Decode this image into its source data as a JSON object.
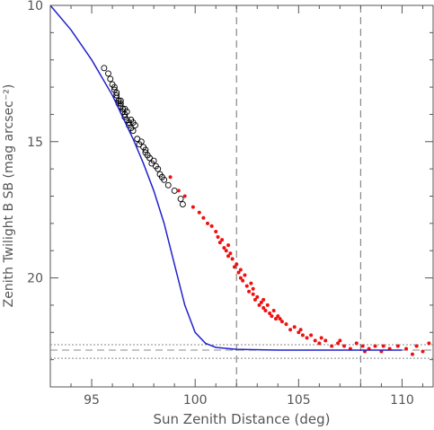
{
  "chart_data": {
    "type": "scatter",
    "title": "",
    "xlabel": "Sun Zenith Distance (deg)",
    "ylabel": "Zenith Twilight B SB (mag arcsec⁻²)",
    "xlim": [
      93,
      111.5
    ],
    "ylim": [
      10,
      24
    ],
    "y_inverted": true,
    "grid": false,
    "x_ticks": [
      95,
      100,
      105,
      110
    ],
    "y_ticks": [
      10,
      15,
      20
    ],
    "vertical_lines": [
      102,
      108
    ],
    "horizontal_lines": [
      {
        "y": 22.45,
        "style": "dotted"
      },
      {
        "y": 22.65,
        "style": "dashed"
      },
      {
        "y": 22.95,
        "style": "dotted"
      }
    ],
    "colors": {
      "model_curve": "#2222cc",
      "open_points": "#000000",
      "filled_points": "#ee1111",
      "reference_lines": "#888888"
    },
    "series": [
      {
        "marker": "open-circle",
        "points": [
          [
            95.6,
            12.3
          ],
          [
            95.8,
            12.5
          ],
          [
            95.9,
            12.7
          ],
          [
            96.0,
            12.9
          ],
          [
            96.1,
            13.0
          ],
          [
            96.1,
            13.1
          ],
          [
            96.2,
            13.3
          ],
          [
            96.2,
            13.4
          ],
          [
            96.3,
            13.5
          ],
          [
            96.3,
            13.6
          ],
          [
            96.4,
            13.5
          ],
          [
            96.4,
            13.7
          ],
          [
            96.5,
            13.8
          ],
          [
            96.5,
            13.9
          ],
          [
            96.6,
            14.0
          ],
          [
            96.6,
            14.1
          ],
          [
            96.7,
            13.9
          ],
          [
            96.7,
            14.2
          ],
          [
            96.8,
            14.3
          ],
          [
            96.8,
            14.4
          ],
          [
            96.9,
            14.2
          ],
          [
            96.9,
            14.5
          ],
          [
            97.0,
            14.6
          ],
          [
            97.1,
            14.4
          ],
          [
            97.2,
            14.9
          ],
          [
            97.3,
            15.1
          ],
          [
            97.4,
            15.0
          ],
          [
            97.5,
            15.2
          ],
          [
            97.6,
            15.4
          ],
          [
            97.7,
            15.5
          ],
          [
            97.8,
            15.6
          ],
          [
            97.9,
            15.8
          ],
          [
            98.0,
            15.7
          ],
          [
            98.1,
            15.9
          ],
          [
            98.2,
            16.0
          ],
          [
            98.3,
            16.2
          ],
          [
            98.5,
            16.4
          ],
          [
            98.7,
            16.6
          ],
          [
            99.0,
            16.8
          ],
          [
            99.3,
            17.1
          ],
          [
            99.4,
            17.3
          ],
          [
            96.2,
            13.2
          ],
          [
            96.4,
            13.6
          ],
          [
            96.6,
            13.8
          ],
          [
            97.0,
            14.3
          ],
          [
            97.6,
            15.3
          ],
          [
            98.4,
            16.3
          ]
        ]
      },
      {
        "marker": "filled-dot",
        "points": [
          [
            98.8,
            16.3
          ],
          [
            99.2,
            16.8
          ],
          [
            99.5,
            17.0
          ],
          [
            99.9,
            17.4
          ],
          [
            100.2,
            17.6
          ],
          [
            100.4,
            17.8
          ],
          [
            100.6,
            18.0
          ],
          [
            100.8,
            18.1
          ],
          [
            101.0,
            18.3
          ],
          [
            101.1,
            18.5
          ],
          [
            101.2,
            18.7
          ],
          [
            101.3,
            18.6
          ],
          [
            101.4,
            18.9
          ],
          [
            101.5,
            19.0
          ],
          [
            101.6,
            19.2
          ],
          [
            101.7,
            19.1
          ],
          [
            101.8,
            19.3
          ],
          [
            101.9,
            19.6
          ],
          [
            102.0,
            19.5
          ],
          [
            102.1,
            19.8
          ],
          [
            102.2,
            20.0
          ],
          [
            102.3,
            20.1
          ],
          [
            102.4,
            19.9
          ],
          [
            102.5,
            20.3
          ],
          [
            102.6,
            20.5
          ],
          [
            102.7,
            20.2
          ],
          [
            102.8,
            20.6
          ],
          [
            102.9,
            20.8
          ],
          [
            103.0,
            20.7
          ],
          [
            103.1,
            21.0
          ],
          [
            103.2,
            20.9
          ],
          [
            103.3,
            21.1
          ],
          [
            103.4,
            21.2
          ],
          [
            103.5,
            21.0
          ],
          [
            103.6,
            21.3
          ],
          [
            103.7,
            21.4
          ],
          [
            103.8,
            21.2
          ],
          [
            103.9,
            21.5
          ],
          [
            104.0,
            21.4
          ],
          [
            104.2,
            21.6
          ],
          [
            104.4,
            21.7
          ],
          [
            104.6,
            21.9
          ],
          [
            104.8,
            21.8
          ],
          [
            105.0,
            22.0
          ],
          [
            105.2,
            22.1
          ],
          [
            105.4,
            22.2
          ],
          [
            105.6,
            22.1
          ],
          [
            105.8,
            22.3
          ],
          [
            106.0,
            22.4
          ],
          [
            106.3,
            22.3
          ],
          [
            106.6,
            22.5
          ],
          [
            106.9,
            22.4
          ],
          [
            107.2,
            22.5
          ],
          [
            107.5,
            22.6
          ],
          [
            107.8,
            22.4
          ],
          [
            108.1,
            22.5
          ],
          [
            108.4,
            22.6
          ],
          [
            108.7,
            22.5
          ],
          [
            109.0,
            22.7
          ],
          [
            109.4,
            22.6
          ],
          [
            109.8,
            22.5
          ],
          [
            110.2,
            22.6
          ],
          [
            110.7,
            22.5
          ],
          [
            111.0,
            22.7
          ],
          [
            111.3,
            22.4
          ],
          [
            101.6,
            18.8
          ],
          [
            102.2,
            19.7
          ],
          [
            102.8,
            20.4
          ],
          [
            103.3,
            20.8
          ],
          [
            104.1,
            21.5
          ],
          [
            105.1,
            21.9
          ],
          [
            106.1,
            22.2
          ],
          [
            107.0,
            22.3
          ],
          [
            108.2,
            22.7
          ],
          [
            109.1,
            22.5
          ],
          [
            110.5,
            22.8
          ]
        ]
      },
      {
        "marker": "line",
        "points": [
          [
            93.0,
            10.0
          ],
          [
            94.0,
            10.9
          ],
          [
            95.0,
            12.0
          ],
          [
            96.0,
            13.3
          ],
          [
            97.0,
            14.9
          ],
          [
            97.5,
            15.8
          ],
          [
            98.0,
            16.8
          ],
          [
            98.5,
            18.0
          ],
          [
            99.0,
            19.5
          ],
          [
            99.5,
            21.0
          ],
          [
            100.0,
            22.0
          ],
          [
            100.5,
            22.4
          ],
          [
            101.0,
            22.55
          ],
          [
            102.0,
            22.62
          ],
          [
            104.0,
            22.65
          ],
          [
            106.0,
            22.65
          ],
          [
            108.0,
            22.65
          ],
          [
            110.0,
            22.65
          ]
        ]
      }
    ]
  }
}
